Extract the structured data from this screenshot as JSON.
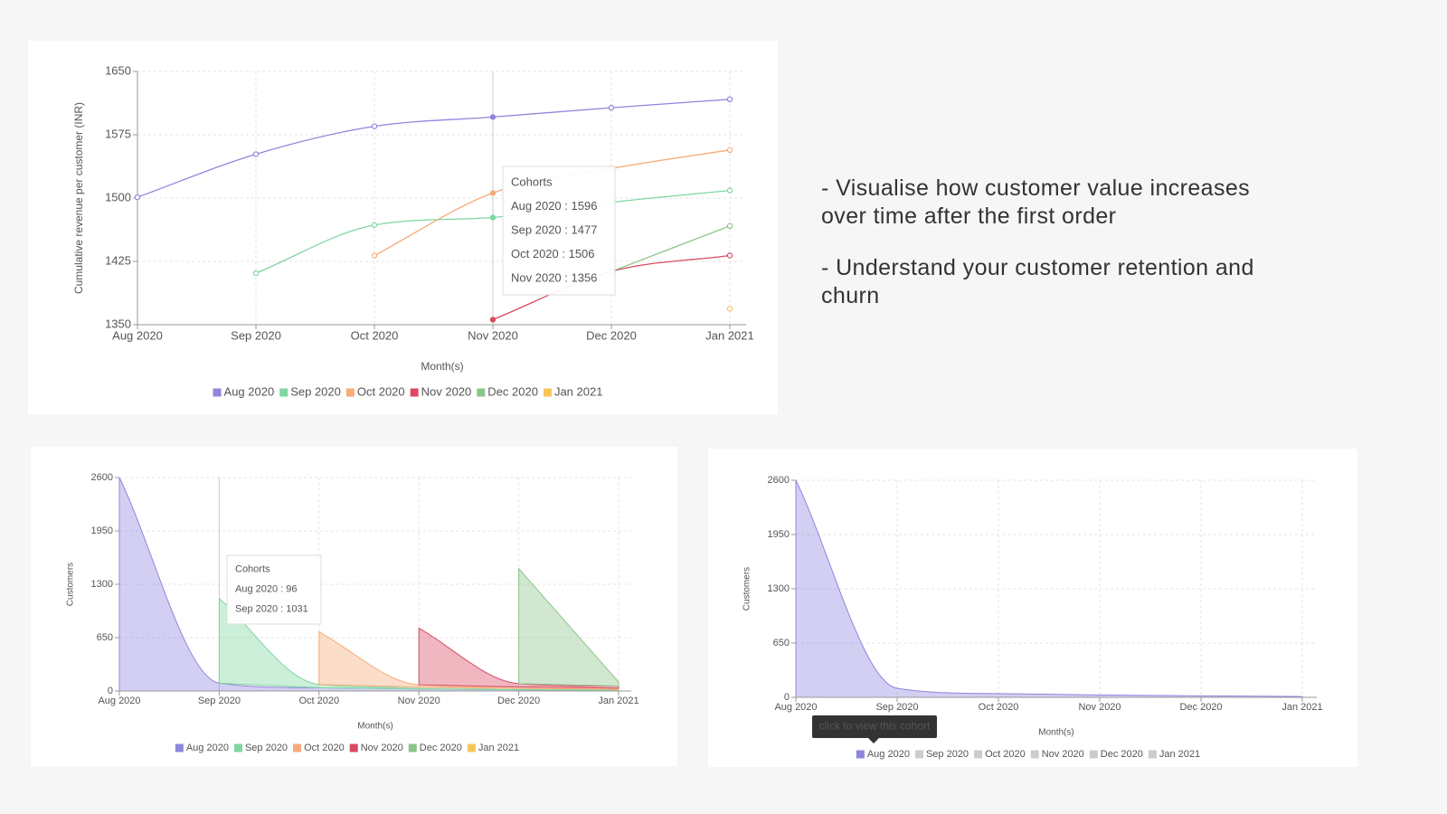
{
  "notes": [
    "- Visualise how customer value increases over time after the first order",
    "- Understand your customer retention and churn"
  ],
  "chart_data": [
    {
      "type": "line",
      "ylabel": "Cumulative revenue per customer (INR)",
      "xlabel": "Month(s)",
      "categories": [
        "Aug 2020",
        "Sep 2020",
        "Oct 2020",
        "Nov 2020",
        "Dec 2020",
        "Jan 2021"
      ],
      "ylim": [
        1350,
        1650
      ],
      "yticks": [
        1350,
        1425,
        1500,
        1575,
        1650
      ],
      "grid": true,
      "series": [
        {
          "name": "Aug 2020",
          "color": "#8f86de",
          "values": [
            1501,
            1552,
            1585,
            1596,
            1607,
            1617
          ]
        },
        {
          "name": "Sep 2020",
          "color": "#7fd6a0",
          "values": [
            null,
            1411,
            1468,
            1477,
            1495,
            1509
          ]
        },
        {
          "name": "Oct 2020",
          "color": "#f6ab78",
          "values": [
            null,
            null,
            1432,
            1506,
            1535,
            1557
          ]
        },
        {
          "name": "Nov 2020",
          "color": "#d94a63",
          "values": [
            null,
            null,
            null,
            1356,
            1413,
            1432
          ]
        },
        {
          "name": "Dec 2020",
          "color": "#8cc48a",
          "values": [
            null,
            null,
            null,
            null,
            1413,
            1467
          ]
        },
        {
          "name": "Jan 2021",
          "color": "#f8c55a",
          "values": [
            null,
            null,
            null,
            null,
            null,
            1369
          ]
        }
      ],
      "tooltip": {
        "title": "Cohorts",
        "items": [
          "Aug 2020 : 1596",
          "Sep 2020 : 1477",
          "Oct 2020 : 1506",
          "Nov 2020 : 1356"
        ]
      }
    },
    {
      "type": "area",
      "stacked": true,
      "ylabel": "Customers",
      "xlabel": "Month(s)",
      "categories": [
        "Aug 2020",
        "Sep 2020",
        "Oct 2020",
        "Nov 2020",
        "Dec 2020",
        "Jan 2021"
      ],
      "ylim": [
        0,
        2600
      ],
      "yticks": [
        0,
        650,
        1300,
        1950,
        2600
      ],
      "grid": true,
      "series": [
        {
          "name": "Aug 2020",
          "color": "#8f86de",
          "values": [
            2600,
            96,
            40,
            25,
            15,
            10
          ]
        },
        {
          "name": "Sep 2020",
          "color": "#7fd6a0",
          "values": [
            null,
            1031,
            40,
            20,
            15,
            10
          ]
        },
        {
          "name": "Oct 2020",
          "color": "#f6ab78",
          "values": [
            null,
            null,
            640,
            30,
            20,
            15
          ]
        },
        {
          "name": "Nov 2020",
          "color": "#d94a63",
          "values": [
            null,
            null,
            null,
            690,
            40,
            25
          ]
        },
        {
          "name": "Dec 2020",
          "color": "#8cc48a",
          "values": [
            null,
            null,
            null,
            null,
            1400,
            50
          ]
        },
        {
          "name": "Jan 2021",
          "color": "#f8c55a",
          "values": [
            null,
            null,
            null,
            null,
            null,
            10
          ]
        }
      ],
      "tooltip": {
        "title": "Cohorts",
        "items": [
          "Aug 2020 : 96",
          "Sep 2020 : 1031"
        ]
      }
    },
    {
      "type": "area",
      "stacked": true,
      "ylabel": "Customers",
      "xlabel": "Month(s)",
      "categories": [
        "Aug 2020",
        "Sep 2020",
        "Oct 2020",
        "Nov 2020",
        "Dec 2020",
        "Jan 2021"
      ],
      "ylim": [
        0,
        2600
      ],
      "yticks": [
        0,
        650,
        1300,
        1950,
        2600
      ],
      "grid": true,
      "series": [
        {
          "name": "Aug 2020",
          "color": "#8f86de",
          "values": [
            2600,
            108,
            45,
            28,
            18,
            10
          ]
        },
        {
          "name": "Sep 2020",
          "color": "#7fd6a0",
          "hidden": true
        },
        {
          "name": "Oct 2020",
          "color": "#f6ab78",
          "hidden": true
        },
        {
          "name": "Nov 2020",
          "color": "#d94a63",
          "hidden": true
        },
        {
          "name": "Dec 2020",
          "color": "#8cc48a",
          "hidden": true
        },
        {
          "name": "Jan 2021",
          "color": "#f8c55a",
          "hidden": true
        }
      ],
      "legend_tooltip": "click to view this cohort"
    }
  ]
}
